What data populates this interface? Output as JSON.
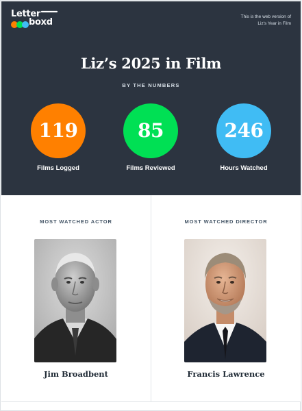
{
  "brand": {
    "logo_line1": "Letter",
    "logo_line2": "boxd",
    "dot_colors": [
      "#ff8000",
      "#00e054",
      "#40bcf4"
    ]
  },
  "header": {
    "web_version_line1": "This is the web version of",
    "web_version_line2": "Liz's Year in Film"
  },
  "hero": {
    "title": "Liz’s 2025 in Film",
    "subtitle": "BY THE NUMBERS"
  },
  "stats": [
    {
      "value": "119",
      "label": "Films Logged",
      "color": "#ff8000"
    },
    {
      "value": "85",
      "label": "Films Reviewed",
      "color": "#00e054"
    },
    {
      "value": "246",
      "label": "Hours Watched",
      "color": "#40bcf4"
    }
  ],
  "actor": {
    "heading": "MOST WATCHED ACTOR",
    "name": "Jim Broadbent"
  },
  "director": {
    "heading": "MOST WATCHED DIRECTOR",
    "name": "Francis Lawrence"
  }
}
